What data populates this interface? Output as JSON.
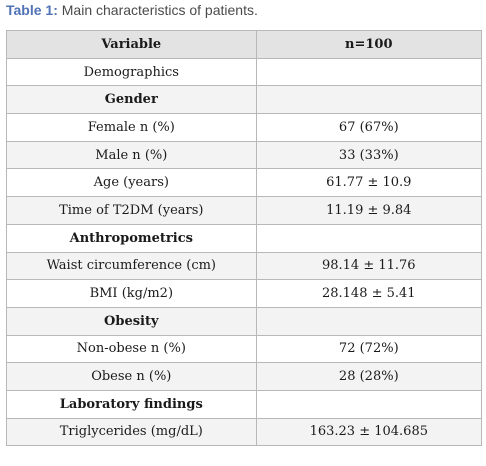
{
  "caption": {
    "label": "Table 1:",
    "text": " Main characteristics of patients."
  },
  "table": {
    "headers": [
      "Variable",
      "n=100"
    ],
    "rows": [
      {
        "variable": "Demographics",
        "value": "",
        "bold": false
      },
      {
        "variable": "Gender",
        "value": "",
        "bold": true
      },
      {
        "variable": "Female n (%)",
        "value": "67 (67%)",
        "bold": false
      },
      {
        "variable": "Male n (%)",
        "value": "33 (33%)",
        "bold": false
      },
      {
        "variable": "Age (years)",
        "value": "61.77 ± 10.9",
        "bold": false
      },
      {
        "variable": "Time of T2DM (years)",
        "value": "11.19 ± 9.84",
        "bold": false
      },
      {
        "variable": "Anthropometrics",
        "value": "",
        "bold": true
      },
      {
        "variable": "Waist circumference (cm)",
        "value": "98.14 ± 11.76",
        "bold": false
      },
      {
        "variable": "BMI (kg/m2)",
        "value": "28.148 ± 5.41",
        "bold": false
      },
      {
        "variable": "Obesity",
        "value": "",
        "bold": true
      },
      {
        "variable": "Non-obese n (%)",
        "value": "72 (72%)",
        "bold": false
      },
      {
        "variable": "Obese n (%)",
        "value": "28 (28%)",
        "bold": false
      },
      {
        "variable": "Laboratory findings",
        "value": "",
        "bold": true
      },
      {
        "variable": "Triglycerides (mg/dL)",
        "value": "163.23 ± 104.685",
        "bold": false
      }
    ]
  }
}
